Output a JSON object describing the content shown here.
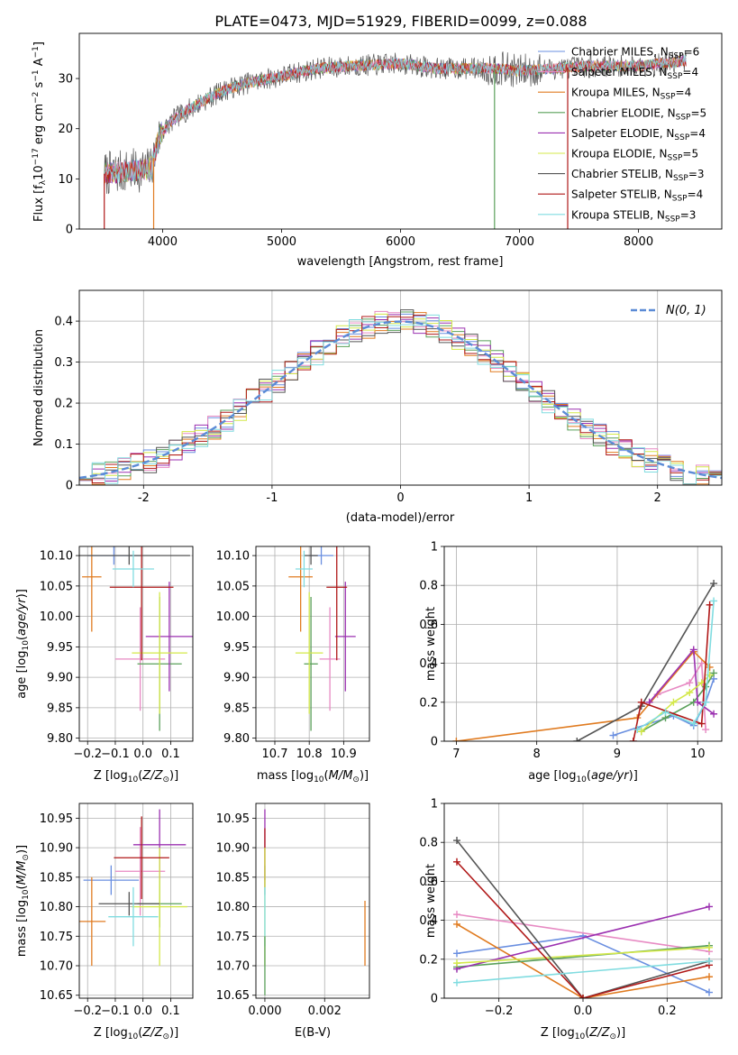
{
  "figure": {
    "title": "PLATE=0473, MJD=51929, FIBERID=0099, z=0.088"
  },
  "colors": {
    "Chabrier MILES": "#6a8fe0",
    "Salpeter MILES": "#e78ac3",
    "Kroupa MILES": "#e07b20",
    "Chabrier ELODIE": "#5aa05a",
    "Salpeter ELODIE": "#9b30b0",
    "Kroupa ELODIE": "#d4e84a",
    "Chabrier STELIB": "#555555",
    "Salpeter STELIB": "#b01818",
    "Kroupa STELIB": "#80dce0",
    "normal_curve": "#5b8bd6",
    "grid": "#b0b0b0"
  },
  "chart_data": [
    {
      "id": "spectrum",
      "type": "line",
      "xlabel": "wavelength [Angstrom, rest frame]",
      "ylabel": "Flux [f",
      "ylabel_sub": "λ",
      "ylabel_rest": "10",
      "ylabel_exp1": "−17",
      "ylabel_unit": " erg cm",
      "ylabel_exp2": "−2",
      "ylabel_unit2": " s",
      "ylabel_exp3": "−1",
      "ylabel_unit3": " A",
      "ylabel_exp4": "−1",
      "ylabel_end": "]",
      "xlim": [
        3300,
        8700
      ],
      "ylim": [
        0,
        39
      ],
      "xticks": [
        4000,
        5000,
        6000,
        7000,
        8000
      ],
      "yticks": [
        0,
        10,
        20,
        30
      ],
      "grid": false,
      "legend_position": "upper right",
      "legend": [
        {
          "label": "Chabrier MILES, N",
          "sub": "SSP",
          "suffix": "=6",
          "model": "Chabrier MILES"
        },
        {
          "label": "Salpeter MILES, N",
          "sub": "SSP",
          "suffix": "=4",
          "model": "Salpeter MILES"
        },
        {
          "label": "Kroupa MILES, N",
          "sub": "SSP",
          "suffix": "=4",
          "model": "Kroupa MILES"
        },
        {
          "label": "Chabrier ELODIE, N",
          "sub": "SSP",
          "suffix": "=5",
          "model": "Chabrier ELODIE"
        },
        {
          "label": "Salpeter ELODIE, N",
          "sub": "SSP",
          "suffix": "=4",
          "model": "Salpeter ELODIE"
        },
        {
          "label": "Kroupa ELODIE, N",
          "sub": "SSP",
          "suffix": "=5",
          "model": "Kroupa ELODIE"
        },
        {
          "label": "Chabrier STELIB, N",
          "sub": "SSP",
          "suffix": "=3",
          "model": "Chabrier STELIB"
        },
        {
          "label": "Salpeter STELIB, N",
          "sub": "SSP",
          "suffix": "=4",
          "model": "Salpeter STELIB"
        },
        {
          "label": "Kroupa STELIB, N",
          "sub": "SSP",
          "suffix": "=3",
          "model": "Kroupa STELIB"
        }
      ],
      "continuum": [
        [
          3500,
          11
        ],
        [
          3700,
          11.5
        ],
        [
          3900,
          12
        ],
        [
          3980,
          19
        ],
        [
          4100,
          22
        ],
        [
          4300,
          25
        ],
        [
          4500,
          27.5
        ],
        [
          4700,
          29
        ],
        [
          5000,
          30.5
        ],
        [
          5300,
          32
        ],
        [
          5600,
          32.5
        ],
        [
          6000,
          33
        ],
        [
          6300,
          32
        ],
        [
          6600,
          32
        ],
        [
          6800,
          32
        ],
        [
          7000,
          31.5
        ],
        [
          7300,
          32
        ],
        [
          7600,
          32.5
        ],
        [
          8000,
          32.5
        ],
        [
          8400,
          33.5
        ]
      ],
      "spikes": [
        {
          "x": 3510,
          "model": "Salpeter STELIB"
        },
        {
          "x": 3925,
          "model": "Kroupa MILES"
        },
        {
          "x": 6790,
          "model": "Chabrier ELODIE"
        },
        {
          "x": 7405,
          "model": "Salpeter STELIB"
        }
      ]
    },
    {
      "id": "residuals",
      "type": "histogram",
      "xlabel": "(data-model)/error",
      "ylabel": "Normed distribution",
      "xlim": [
        -2.5,
        2.5
      ],
      "ylim": [
        0,
        0.475
      ],
      "xticks": [
        -2,
        -1,
        0,
        1,
        2
      ],
      "yticks": [
        0.0,
        0.1,
        0.2,
        0.3,
        0.4
      ],
      "grid": true,
      "legend_position": "upper right",
      "legend_label": "N(0, 1)",
      "bin_width": 0.1,
      "bin_start": -2.5,
      "series_note_models": [
        "Chabrier MILES",
        "Salpeter MILES",
        "Kroupa MILES",
        "Chabrier ELODIE",
        "Salpeter ELODIE",
        "Kroupa ELODIE",
        "Chabrier STELIB",
        "Salpeter STELIB",
        "Kroupa STELIB"
      ]
    },
    {
      "id": "age_vs_Z",
      "type": "errorbar",
      "xlabel": "Z [log",
      "xlabel_sub": "10",
      "xlabel_rest": "(Z/Z",
      "xlabel_sub2": "⊙",
      "xlabel_end": ")]",
      "ylabel": "age  [log",
      "ylabel_sub": "10",
      "ylabel_rest": "(age/yr)]",
      "xlim": [
        -0.23,
        0.18
      ],
      "ylim": [
        9.795,
        10.115
      ],
      "xticks": [
        -0.2,
        -0.1,
        0.0,
        0.1
      ],
      "xticklabels": [
        "−0.2",
        "−0.1",
        "0.0",
        "0.1"
      ],
      "yticks": [
        9.8,
        9.85,
        9.9,
        9.95,
        10.0,
        10.05,
        10.1
      ],
      "yticklabels": [
        "9.80",
        "9.85",
        "9.90",
        "9.95",
        "10.00",
        "10.05",
        "10.10"
      ],
      "grid": true,
      "points": [
        {
          "model": "Chabrier MILES",
          "x": -0.105,
          "xerr": 0.095,
          "y": 10.1,
          "yerr": 0.015
        },
        {
          "model": "Salpeter MILES",
          "x": -0.01,
          "xerr": 0.09,
          "y": 9.93,
          "yerr": 0.085
        },
        {
          "model": "Kroupa MILES",
          "x": -0.185,
          "xerr": 0.035,
          "y": 10.065,
          "yerr": 0.09
        },
        {
          "model": "Chabrier ELODIE",
          "x": 0.06,
          "xerr": 0.08,
          "y": 9.922,
          "yerr": 0.11
        },
        {
          "model": "Salpeter ELODIE",
          "x": 0.095,
          "xerr": 0.085,
          "y": 9.967,
          "yerr": 0.09
        },
        {
          "model": "Kroupa ELODIE",
          "x": 0.06,
          "xerr": 0.1,
          "y": 9.94,
          "yerr": 0.1
        },
        {
          "model": "Chabrier STELIB",
          "x": -0.05,
          "xerr": 0.22,
          "y": 10.1,
          "yerr": 0.015
        },
        {
          "model": "Salpeter STELIB",
          "x": -0.005,
          "xerr": 0.115,
          "y": 10.048,
          "yerr": 0.12
        },
        {
          "model": "Kroupa STELIB",
          "x": -0.035,
          "xerr": 0.075,
          "y": 10.078,
          "yerr": 0.03
        }
      ]
    },
    {
      "id": "age_vs_mass",
      "type": "errorbar",
      "xlabel": "mass [log",
      "xlabel_sub": "10",
      "xlabel_rest": "(M/M",
      "xlabel_sub2": "⊙",
      "xlabel_end": ")]",
      "xlim": [
        10.645,
        10.975
      ],
      "ylim": [
        9.795,
        10.115
      ],
      "xticks": [
        10.7,
        10.8,
        10.9
      ],
      "xticklabels": [
        "10.7",
        "10.8",
        "10.9"
      ],
      "yticks": [
        9.8,
        9.85,
        9.9,
        9.95,
        10.0,
        10.05,
        10.1
      ],
      "yticklabels": [
        "9.80",
        "9.85",
        "9.90",
        "9.95",
        "10.00",
        "10.05",
        "10.10"
      ],
      "grid": true,
      "points": [
        {
          "model": "Chabrier MILES",
          "x": 10.835,
          "xerr": 0.035,
          "y": 10.1,
          "yerr": 0.015
        },
        {
          "model": "Salpeter MILES",
          "x": 10.86,
          "xerr": 0.03,
          "y": 9.93,
          "yerr": 0.085
        },
        {
          "model": "Kroupa MILES",
          "x": 10.775,
          "xerr": 0.035,
          "y": 10.065,
          "yerr": 0.09
        },
        {
          "model": "Chabrier ELODIE",
          "x": 10.805,
          "xerr": 0.02,
          "y": 9.922,
          "yerr": 0.11
        },
        {
          "model": "Salpeter ELODIE",
          "x": 10.905,
          "xerr": 0.03,
          "y": 9.967,
          "yerr": 0.09
        },
        {
          "model": "Kroupa ELODIE",
          "x": 10.8,
          "xerr": 0.04,
          "y": 9.94,
          "yerr": 0.1
        },
        {
          "model": "Chabrier STELIB",
          "x": 10.805,
          "xerr": 0.02,
          "y": 10.1,
          "yerr": 0.015
        },
        {
          "model": "Salpeter STELIB",
          "x": 10.88,
          "xerr": 0.03,
          "y": 10.048,
          "yerr": 0.12
        },
        {
          "model": "Kroupa STELIB",
          "x": 10.785,
          "xerr": 0.025,
          "y": 10.078,
          "yerr": 0.03
        }
      ]
    },
    {
      "id": "weight_vs_age",
      "type": "line",
      "xlabel": "age  [log",
      "xlabel_sub": "10",
      "xlabel_rest": "(age/yr)]",
      "ylabel": "mass weight",
      "xlim": [
        6.85,
        10.3
      ],
      "ylim": [
        0,
        1.0
      ],
      "xticks": [
        7,
        8,
        9,
        10
      ],
      "yticks": [
        0.0,
        0.2,
        0.4,
        0.6,
        0.8,
        1.0
      ],
      "grid": true,
      "series": [
        {
          "model": "Chabrier MILES",
          "x": [
            8.95,
            9.7,
            9.95,
            10.1,
            10.2
          ],
          "y": [
            0.03,
            0.13,
            0.08,
            0.2,
            0.32
          ]
        },
        {
          "model": "Salpeter MILES",
          "x": [
            9.5,
            9.9,
            10.05,
            10.1
          ],
          "y": [
            0.24,
            0.3,
            0.4,
            0.06
          ]
        },
        {
          "model": "Kroupa MILES",
          "x": [
            7.0,
            9.25,
            9.95,
            10.15
          ],
          "y": [
            0.0,
            0.12,
            0.46,
            0.38
          ]
        },
        {
          "model": "Chabrier ELODIE",
          "x": [
            9.3,
            9.6,
            9.95,
            10.1,
            10.2
          ],
          "y": [
            0.05,
            0.12,
            0.2,
            0.28,
            0.35
          ]
        },
        {
          "model": "Salpeter ELODIE",
          "x": [
            9.4,
            9.95,
            10.0,
            10.2
          ],
          "y": [
            0.2,
            0.47,
            0.2,
            0.14
          ]
        },
        {
          "model": "Kroupa ELODIE",
          "x": [
            9.3,
            9.7,
            9.9,
            10.05,
            10.15
          ],
          "y": [
            0.05,
            0.2,
            0.25,
            0.3,
            0.34
          ]
        },
        {
          "model": "Chabrier STELIB",
          "x": [
            8.5,
            9.3,
            10.2
          ],
          "y": [
            0.0,
            0.18,
            0.81
          ]
        },
        {
          "model": "Salpeter STELIB",
          "x": [
            9.2,
            9.3,
            10.05,
            10.15
          ],
          "y": [
            0.0,
            0.2,
            0.09,
            0.7
          ]
        },
        {
          "model": "Kroupa STELIB",
          "x": [
            9.25,
            9.6,
            9.95,
            10.1,
            10.2
          ],
          "y": [
            0.06,
            0.15,
            0.09,
            0.2,
            0.72
          ]
        }
      ]
    },
    {
      "id": "mass_vs_Z",
      "type": "errorbar",
      "xlabel": "Z [log",
      "xlabel_sub": "10",
      "xlabel_rest": "(Z/Z",
      "xlabel_sub2": "⊙",
      "xlabel_end": ")]",
      "ylabel": "mass [log",
      "ylabel_sub": "10",
      "ylabel_rest": "(M/M",
      "ylabel_sub2": "⊙",
      "ylabel_end": ")]",
      "xlim": [
        -0.23,
        0.18
      ],
      "ylim": [
        10.645,
        10.975
      ],
      "xticks": [
        -0.2,
        -0.1,
        0.0,
        0.1
      ],
      "xticklabels": [
        "−0.2",
        "−0.1",
        "0.0",
        "0.1"
      ],
      "yticks": [
        10.65,
        10.7,
        10.75,
        10.8,
        10.85,
        10.9,
        10.95
      ],
      "yticklabels": [
        "10.65",
        "10.70",
        "10.75",
        "10.80",
        "10.85",
        "10.90",
        "10.95"
      ],
      "grid": true,
      "points": [
        {
          "model": "Chabrier MILES",
          "x": -0.115,
          "xerr": 0.1,
          "y": 10.845,
          "yerr": 0.025
        },
        {
          "model": "Salpeter MILES",
          "x": -0.01,
          "xerr": 0.09,
          "y": 10.86,
          "yerr": 0.075
        },
        {
          "model": "Kroupa MILES",
          "x": -0.185,
          "xerr": 0.05,
          "y": 10.775,
          "yerr": 0.075
        },
        {
          "model": "Chabrier ELODIE",
          "x": 0.06,
          "xerr": 0.08,
          "y": 10.805,
          "yerr": 0.04
        },
        {
          "model": "Salpeter ELODIE",
          "x": 0.06,
          "xerr": 0.095,
          "y": 10.905,
          "yerr": 0.06
        },
        {
          "model": "Kroupa ELODIE",
          "x": 0.06,
          "xerr": 0.1,
          "y": 10.8,
          "yerr": 0.1
        },
        {
          "model": "Chabrier STELIB",
          "x": -0.05,
          "xerr": 0.11,
          "y": 10.805,
          "yerr": 0.02
        },
        {
          "model": "Salpeter STELIB",
          "x": -0.005,
          "xerr": 0.1,
          "y": 10.883,
          "yerr": 0.07
        },
        {
          "model": "Kroupa STELIB",
          "x": -0.035,
          "xerr": 0.09,
          "y": 10.783,
          "yerr": 0.05
        }
      ]
    },
    {
      "id": "mass_vs_ebv",
      "type": "errorbar",
      "xlabel": "E(B-V)",
      "xlim": [
        -0.0003,
        0.0035
      ],
      "ylim": [
        10.645,
        10.975
      ],
      "xticks": [
        0.0,
        0.002
      ],
      "xticklabels": [
        "0.000",
        "0.002"
      ],
      "yticks": [
        10.65,
        10.7,
        10.75,
        10.8,
        10.85,
        10.9,
        10.95
      ],
      "yticklabels": [
        "10.65",
        "10.70",
        "10.75",
        "10.80",
        "10.85",
        "10.90",
        "10.95"
      ],
      "grid": true,
      "points": [
        {
          "model": "Chabrier MILES",
          "x": 0.0,
          "xerr": 0.0,
          "y": 10.845,
          "yerr": 0.025
        },
        {
          "model": "Salpeter ELODIE",
          "x": 0.0,
          "xerr": 0.0,
          "y": 10.905,
          "yerr": 0.06
        },
        {
          "model": "Salpeter STELIB",
          "x": 0.0,
          "xerr": 0.0,
          "y": 10.883,
          "yerr": 0.05
        },
        {
          "model": "Kroupa ELODIE",
          "x": 0.0,
          "xerr": 0.0,
          "y": 10.8,
          "yerr": 0.1
        },
        {
          "model": "Kroupa STELIB",
          "x": 0.0,
          "xerr": 0.0,
          "y": 10.783,
          "yerr": 0.05
        },
        {
          "model": "Chabrier ELODIE",
          "x": 0.0,
          "xerr": 0.0,
          "y": 10.7,
          "yerr": 0.05
        },
        {
          "model": "Kroupa MILES",
          "x": 0.00335,
          "xerr": 0.0,
          "y": 10.755,
          "yerr": 0.055
        }
      ]
    },
    {
      "id": "weight_vs_Z",
      "type": "line",
      "xlabel": "Z [log",
      "xlabel_sub": "10",
      "xlabel_rest": "(Z/Z",
      "xlabel_sub2": "⊙",
      "xlabel_end": ")]",
      "ylabel": "mass weight",
      "xlim": [
        -0.33,
        0.33
      ],
      "ylim": [
        0,
        1.0
      ],
      "xticks": [
        -0.2,
        0.0,
        0.2
      ],
      "xticklabels": [
        "−0.2",
        "0.0",
        "0.2"
      ],
      "yticks": [
        0.0,
        0.2,
        0.4,
        0.6,
        0.8,
        1.0
      ],
      "grid": true,
      "series": [
        {
          "model": "Chabrier MILES",
          "x": [
            -0.3,
            0.0,
            0.3
          ],
          "y": [
            0.23,
            0.32,
            0.03
          ]
        },
        {
          "model": "Salpeter MILES",
          "x": [
            -0.3,
            0.3
          ],
          "y": [
            0.43,
            0.24
          ]
        },
        {
          "model": "Kroupa MILES",
          "x": [
            -0.3,
            0.0,
            0.3
          ],
          "y": [
            0.38,
            0.0,
            0.11
          ]
        },
        {
          "model": "Chabrier ELODIE",
          "x": [
            -0.3,
            0.3
          ],
          "y": [
            0.16,
            0.27
          ]
        },
        {
          "model": "Salpeter ELODIE",
          "x": [
            -0.3,
            0.3
          ],
          "y": [
            0.15,
            0.47
          ]
        },
        {
          "model": "Kroupa ELODIE",
          "x": [
            -0.3,
            0.3
          ],
          "y": [
            0.18,
            0.26
          ]
        },
        {
          "model": "Chabrier STELIB",
          "x": [
            -0.3,
            0.0,
            0.3
          ],
          "y": [
            0.81,
            0.0,
            0.19
          ]
        },
        {
          "model": "Salpeter STELIB",
          "x": [
            -0.3,
            0.0,
            0.3
          ],
          "y": [
            0.7,
            0.0,
            0.17
          ]
        },
        {
          "model": "Kroupa STELIB",
          "x": [
            -0.3,
            0.3
          ],
          "y": [
            0.08,
            0.19
          ]
        }
      ]
    }
  ]
}
